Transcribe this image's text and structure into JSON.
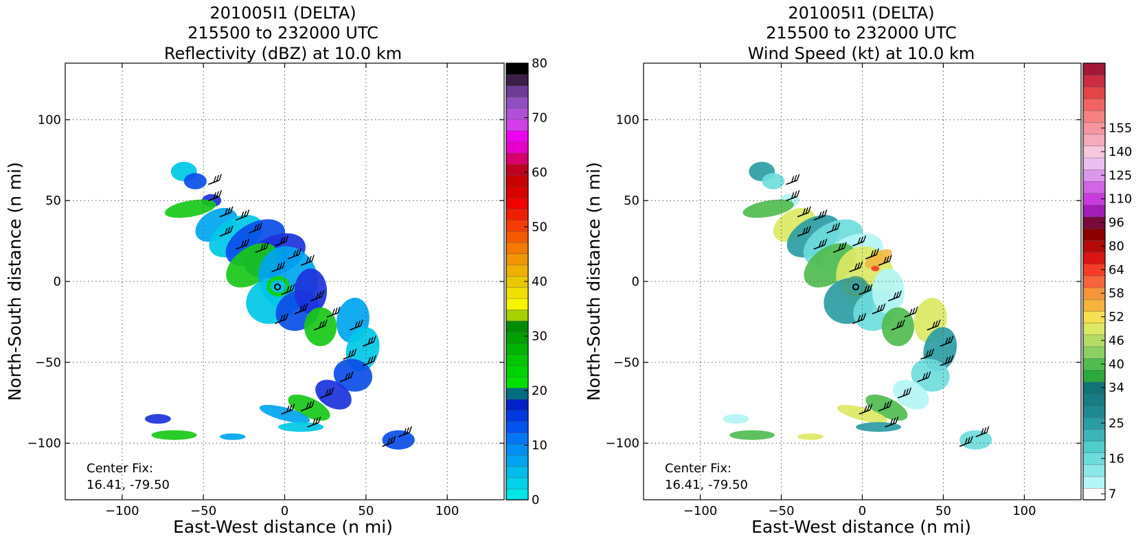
{
  "panels": [
    {
      "id": "reflectivity",
      "title": [
        "201005I1 (DELTA)",
        "215500 to 232000 UTC",
        "Reflectivity (dBZ) at 10.0 km"
      ],
      "xlabel": "East-West distance (n mi)",
      "ylabel": "North-South distance (n mi)",
      "center_fix_label": "Center Fix:",
      "center_fix_value": "16.41, -79.50"
    },
    {
      "id": "windspeed",
      "title": [
        "201005I1 (DELTA)",
        "215500 to 232000 UTC",
        "Wind Speed (kt) at 10.0 km"
      ],
      "xlabel": "East-West distance (n mi)",
      "ylabel": "North-South distance (n mi)",
      "center_fix_label": "Center Fix:",
      "center_fix_value": "16.41, -79.50"
    }
  ],
  "chart_data": [
    {
      "type": "heatmap",
      "title": "201005I1 (DELTA) 215500 to 232000 UTC Reflectivity (dBZ) at 10.0 km",
      "xlabel": "East-West distance (n mi)",
      "ylabel": "North-South distance (n mi)",
      "xlim": [
        -135,
        135
      ],
      "ylim": [
        -135,
        135
      ],
      "xticks": [
        -100,
        -50,
        0,
        50,
        100
      ],
      "yticks": [
        -100,
        -50,
        0,
        50,
        100
      ],
      "grid": true,
      "center": [
        -4,
        -3
      ],
      "colorbar": {
        "label": "dBZ",
        "min": 0,
        "max": 80,
        "tick_values": [
          0,
          10,
          20,
          30,
          40,
          50,
          60,
          70,
          80
        ],
        "colors": [
          "#00e5e5",
          "#00d2e8",
          "#00bdea",
          "#00a5f0",
          "#0090f5",
          "#0078f5",
          "#0055f0",
          "#0038e0",
          "#0022c8",
          "#006e82",
          "#00e000",
          "#00d400",
          "#00c800",
          "#00b400",
          "#00a000",
          "#008c00",
          "#a8d000",
          "#f5f500",
          "#f0e000",
          "#e8c800",
          "#f0b000",
          "#f09600",
          "#f57800",
          "#f55a00",
          "#f53c00",
          "#f01e00",
          "#f00000",
          "#d80000",
          "#c80000",
          "#c00020",
          "#d8006e",
          "#e800c8",
          "#f000f0",
          "#d040e8",
          "#b050d8",
          "#9050c0",
          "#6e3c96",
          "#3c1e46",
          "#000000"
        ]
      },
      "wind_barbs": true
    },
    {
      "type": "heatmap",
      "title": "201005I1 (DELTA) 215500 to 232000 UTC Wind Speed (kt) at 10.0 km",
      "xlabel": "East-West distance (n mi)",
      "ylabel": "North-South distance (n mi)",
      "xlim": [
        -135,
        135
      ],
      "ylim": [
        -135,
        135
      ],
      "xticks": [
        -100,
        -50,
        0,
        50,
        100
      ],
      "yticks": [
        -100,
        -50,
        0,
        50,
        100
      ],
      "grid": true,
      "center": [
        -4,
        -3
      ],
      "colorbar": {
        "label": "kt",
        "tick_labels": [
          "7",
          "16",
          "25",
          "34",
          "40",
          "46",
          "52",
          "58",
          "64",
          "80",
          "96",
          "110",
          "125",
          "140",
          "155"
        ],
        "tick_bin_index": [
          0,
          3,
          6,
          9,
          11,
          13,
          15,
          17,
          19,
          21,
          23,
          25,
          27,
          29,
          31
        ],
        "colors": [
          "#ffffff",
          "#b4f5f5",
          "#8ce8e8",
          "#6edcdc",
          "#50cccc",
          "#3cb4b8",
          "#2c9ca4",
          "#208890",
          "#187c84",
          "#127278",
          "#2ca83c",
          "#50bc50",
          "#8cd064",
          "#b4dc64",
          "#dce864",
          "#f5e050",
          "#f5b43c",
          "#f5963c",
          "#f5643c",
          "#f53c28",
          "#dc1414",
          "#b40a0a",
          "#8c0000",
          "#780a3c",
          "#a01eb4",
          "#c83cdc",
          "#d264e6",
          "#dc96ec",
          "#ebbef0",
          "#f5c8dc",
          "#f5aabe",
          "#f596a0",
          "#f58282",
          "#f06464",
          "#e04646",
          "#c82d41",
          "#a01937"
        ]
      },
      "wind_barbs": true
    }
  ]
}
